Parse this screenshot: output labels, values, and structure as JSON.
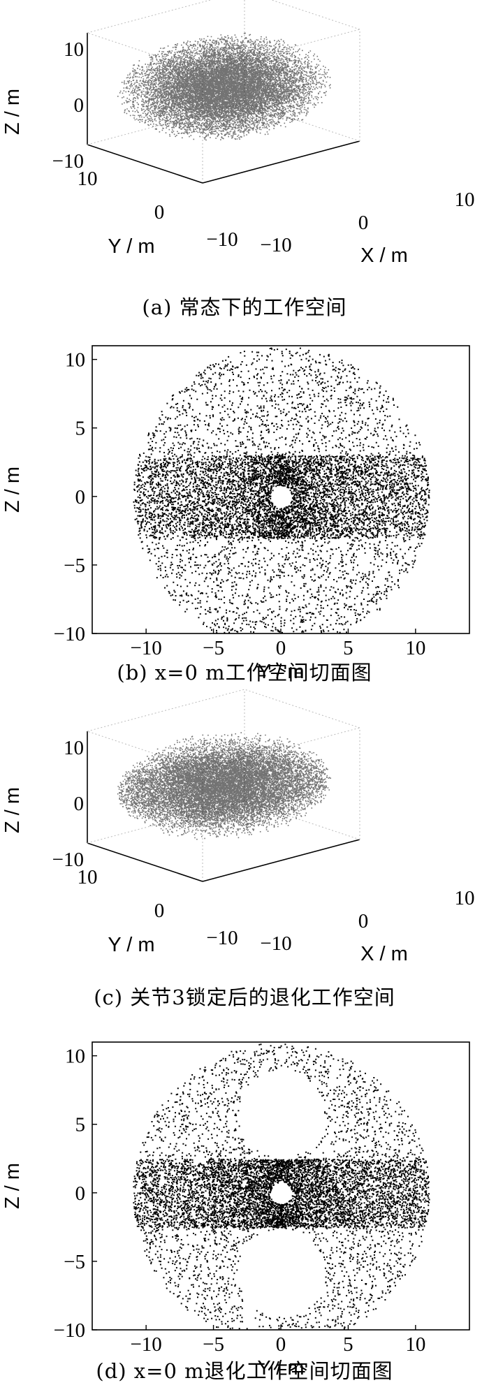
{
  "chart_data": [
    {
      "type": "scatter",
      "subtype": "3d-point-cloud",
      "caption": "(a)  常态下的工作空间",
      "xlabel": "X / m",
      "ylabel": "Y / m",
      "zlabel": "Z / m",
      "x_ticks": [
        "−10",
        "0",
        "10"
      ],
      "y_ticks": [
        "10",
        "0",
        "−10"
      ],
      "z_ticks": [
        "10",
        "0",
        "−10"
      ],
      "xlim": [
        -10,
        10
      ],
      "ylim": [
        -10,
        10
      ],
      "zlim": [
        -10,
        10
      ],
      "shape": "ellipsoid",
      "semi_axes": {
        "x": 11,
        "y": 11,
        "z": 8
      },
      "density": "high near center, decreasing outward",
      "grid": true
    },
    {
      "type": "scatter",
      "caption": "(b)  x=0 m工作空间切面图",
      "xlabel": "Y / m",
      "ylabel": "Z / m",
      "x_ticks": [
        "−10",
        "−5",
        "0",
        "5",
        "10"
      ],
      "y_ticks": [
        "10",
        "5",
        "0",
        "−5",
        "−10"
      ],
      "xlim": [
        -14,
        14
      ],
      "ylim": [
        -10,
        11
      ],
      "region": {
        "center": [
          0,
          0
        ],
        "radius_y": 11,
        "radius_z": 11
      },
      "hole": {
        "center": [
          0,
          0
        ],
        "radius": 0.8
      },
      "dense_band_z": [
        -3,
        3
      ],
      "grid": false
    },
    {
      "type": "scatter",
      "subtype": "3d-point-cloud",
      "caption": "(c)  关节3锁定后的退化工作空间",
      "xlabel": "X / m",
      "ylabel": "Y / m",
      "zlabel": "Z / m",
      "x_ticks": [
        "−10",
        "0",
        "10"
      ],
      "y_ticks": [
        "10",
        "0",
        "−10"
      ],
      "z_ticks": [
        "10",
        "0",
        "−10"
      ],
      "xlim": [
        -10,
        10
      ],
      "ylim": [
        -10,
        10
      ],
      "zlim": [
        -10,
        10
      ],
      "shape": "ellipsoid",
      "semi_axes": {
        "x": 11,
        "y": 11,
        "z": 8
      },
      "density": "dense equatorial band, sparser top",
      "grid": true
    },
    {
      "type": "scatter",
      "caption": "(d)  x=0 m退化工作空间切面图",
      "xlabel": "Y / m",
      "ylabel": "Z / m",
      "x_ticks": [
        "−10",
        "−5",
        "0",
        "5",
        "10"
      ],
      "y_ticks": [
        "10",
        "5",
        "0",
        "−5",
        "−10"
      ],
      "xlim": [
        -14,
        14
      ],
      "ylim": [
        -10,
        11
      ],
      "region": {
        "center": [
          0,
          0
        ],
        "radius_y": 11,
        "radius_z": 11
      },
      "hole": {
        "center": [
          0,
          0
        ],
        "radius": 0.8
      },
      "voids": [
        {
          "center": [
            0,
            5.8
          ],
          "radius": 3.2
        },
        {
          "center": [
            0,
            -5.8
          ],
          "radius": 3.2
        }
      ],
      "dense_band_z": [
        -2.5,
        2.5
      ],
      "grid": false
    }
  ]
}
